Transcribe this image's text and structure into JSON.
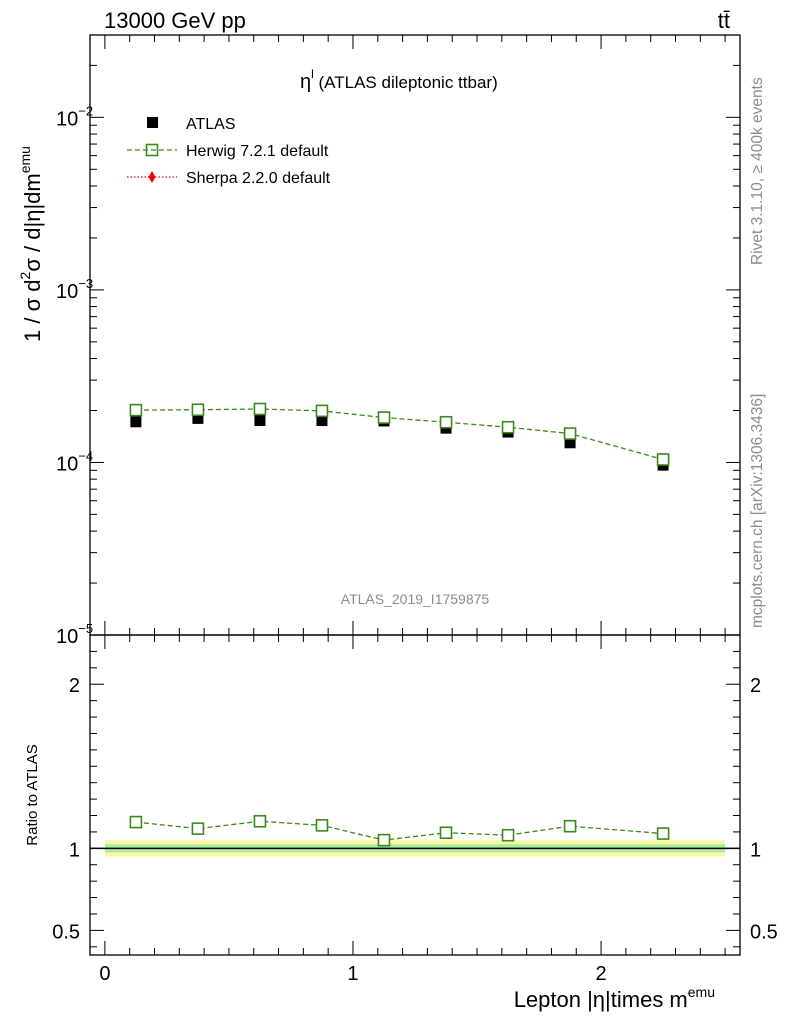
{
  "header": {
    "energy_label": "13000 GeV pp",
    "process_label": "tt̄"
  },
  "side_labels": {
    "rivet": "Rivet 3.1.10, ≥ 400k events",
    "mcplots": "mcplots.cern.ch [arXiv:1306.3436]"
  },
  "chart_data": [
    {
      "type": "scatter",
      "panel": "main",
      "title_main": "η",
      "title_sup": "l",
      "title_rest": " (ATLAS dileptonic ttbar)",
      "watermark": "ATLAS_2019_I1759875",
      "ylabel": {
        "part1": "1 / σ  d",
        "sup1": "2",
        "part2": "σ / d|η|dm",
        "sup2": "emu"
      },
      "yscale": "log",
      "ylim": [
        1e-05,
        0.03
      ],
      "xlim": [
        -0.06,
        2.56
      ],
      "ytick_labels": [
        {
          "value": 0.01,
          "base": "10",
          "exp": "−2"
        },
        {
          "value": 0.001,
          "base": "10",
          "exp": "−3"
        },
        {
          "value": 0.0001,
          "base": "10",
          "exp": "−4"
        },
        {
          "value": 1e-05,
          "base": "10",
          "exp": "−5"
        }
      ],
      "legend": [
        {
          "label": "ATLAS",
          "style": "black-square"
        },
        {
          "label": "Herwig 7.2.1 default",
          "style": "green-open-square-dashed"
        },
        {
          "label": "Sherpa 2.2.0 default",
          "style": "red-diamond-dotted"
        }
      ],
      "legend_position": "top-left",
      "x": [
        0.125,
        0.375,
        0.625,
        0.875,
        1.125,
        1.375,
        1.625,
        1.875,
        2.25
      ],
      "series": [
        {
          "name": "ATLAS",
          "values": [
            0.000172,
            0.00018,
            0.000175,
            0.000175,
            0.000174,
            0.000158,
            0.00015,
            0.00013,
            9.65e-05
          ]
        },
        {
          "name": "Herwig 7.2.1 default",
          "values": [
            0.000201,
            0.000202,
            0.000204,
            0.000199,
            0.000182,
            0.000171,
            0.00016,
            0.000147,
            0.000104
          ]
        }
      ]
    },
    {
      "type": "scatter",
      "panel": "ratio",
      "ylabel": "Ratio to ATLAS",
      "xlabel": {
        "text": "Lepton |η|times m",
        "sup": "emu"
      },
      "ylim": [
        0.35,
        2.3
      ],
      "xlim": [
        -0.06,
        2.56
      ],
      "yticks": [
        0.5,
        1,
        2
      ],
      "ytick_labels": [
        "0.5",
        "1",
        "2"
      ],
      "xticks": [
        0,
        1,
        2
      ],
      "xtick_labels": [
        "0",
        "1",
        "2"
      ],
      "band_inner": 0.025,
      "band_outer": 0.05,
      "x": [
        0.125,
        0.375,
        0.625,
        0.875,
        1.125,
        1.375,
        1.625,
        1.875,
        2.25
      ],
      "series": [
        {
          "name": "Herwig 7.2.1 default",
          "values": [
            1.16,
            1.12,
            1.165,
            1.14,
            1.05,
            1.095,
            1.08,
            1.135,
            1.09
          ]
        }
      ]
    }
  ],
  "colors": {
    "atlas": "#000000",
    "herwig": "#3a8a1a",
    "sherpa": "#e8000b",
    "band_outer": "#fbf7a4",
    "band_inner": "#a8ec9e"
  }
}
